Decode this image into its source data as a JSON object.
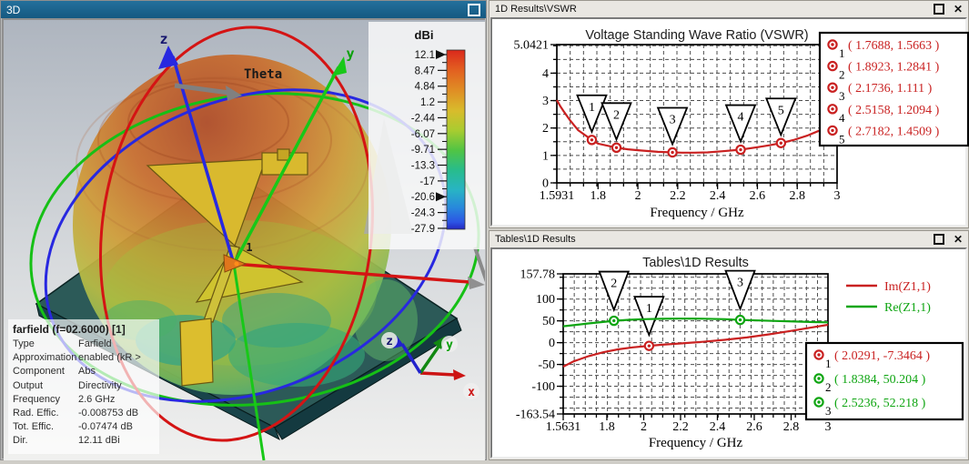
{
  "colors": {
    "red_curve": "#c92121",
    "green_curve": "#0fa512",
    "titlebar_active": "#1a6189"
  },
  "viewport3d": {
    "title": "3D",
    "axis_labels": {
      "z": "z",
      "y": "y",
      "x": "x",
      "theta": "Theta"
    },
    "port_label": "1",
    "colorbar": {
      "title": "dBi",
      "tick_labels": [
        "12.1",
        "8.47",
        "4.84",
        "1.2",
        "-2.44",
        "-6.07",
        "-9.71",
        "-13.3",
        "-17",
        "-20.6",
        "-24.3",
        "-27.9"
      ],
      "arrow_indices": [
        0,
        9
      ]
    },
    "info_box": {
      "title": "farfield (f=02.6000) [1]",
      "rows": [
        {
          "label": "Type",
          "value": "Farfield"
        },
        {
          "label": "Approximation",
          "value": "enabled (kR >"
        },
        {
          "label": "Component",
          "value": "Abs"
        },
        {
          "label": "Output",
          "value": "Directivity"
        },
        {
          "label": "Frequency",
          "value": "2.6 GHz"
        },
        {
          "label": "Rad. Effic.",
          "value": "-0.008753 dB"
        },
        {
          "label": "Tot. Effic.",
          "value": "-0.07474 dB"
        },
        {
          "label": "Dir.",
          "value": "12.11 dBi"
        }
      ]
    }
  },
  "panels": {
    "vswr": {
      "title": "1D Results\\VSWR"
    },
    "tables": {
      "title": "Tables\\1D Results"
    }
  },
  "chart_data": [
    {
      "type": "line",
      "title": "Voltage Standing Wave Ratio (VSWR)",
      "xlabel": "Frequency / GHz",
      "ylabel": "",
      "xlim": [
        1.5931,
        3
      ],
      "ylim": [
        0,
        5.0421
      ],
      "grid": true,
      "xgrid_step": 0.067,
      "ygrid_step": 0.5,
      "xticks": [
        {
          "v": 1.5931,
          "label": "1.5931"
        },
        {
          "v": 1.8,
          "label": "1.8"
        },
        {
          "v": 2,
          "label": "2"
        },
        {
          "v": 2.2,
          "label": "2.2"
        },
        {
          "v": 2.4,
          "label": "2.4"
        },
        {
          "v": 2.6,
          "label": "2.6"
        },
        {
          "v": 2.8,
          "label": "2.8"
        },
        {
          "v": 3,
          "label": "3"
        }
      ],
      "yticks": [
        {
          "v": 0,
          "label": "0"
        },
        {
          "v": 1,
          "label": "1"
        },
        {
          "v": 2,
          "label": "2"
        },
        {
          "v": 3,
          "label": "3"
        },
        {
          "v": 4,
          "label": "4"
        },
        {
          "v": 5.0421,
          "label": "5.0421"
        }
      ],
      "series": [
        {
          "name": "VSWR",
          "color": "#c92121",
          "x": [
            1.5931,
            1.61,
            1.63,
            1.66,
            1.7,
            1.7688,
            1.8,
            1.8923,
            1.95,
            2.0,
            2.05,
            2.1,
            2.1736,
            2.22,
            2.28,
            2.35,
            2.42,
            2.5158,
            2.6,
            2.66,
            2.7182,
            2.78,
            2.85,
            2.91,
            2.95
          ],
          "y": [
            3.02,
            2.8,
            2.58,
            2.28,
            1.92,
            1.5663,
            1.43,
            1.2841,
            1.225,
            1.19,
            1.16,
            1.13,
            1.111,
            1.1,
            1.1,
            1.11,
            1.15,
            1.2094,
            1.3,
            1.37,
            1.4509,
            1.56,
            1.72,
            1.9,
            2.02
          ]
        }
      ],
      "markers": [
        {
          "n": "1",
          "x": 1.7688,
          "y": 1.5663,
          "color": "#c92121"
        },
        {
          "n": "2",
          "x": 1.8923,
          "y": 1.2841,
          "color": "#c92121"
        },
        {
          "n": "3",
          "x": 2.1736,
          "y": 1.111,
          "color": "#c92121"
        },
        {
          "n": "4",
          "x": 2.5158,
          "y": 1.2094,
          "color": "#c92121"
        },
        {
          "n": "5",
          "x": 2.7182,
          "y": 1.4509,
          "color": "#c92121"
        }
      ],
      "legend_rows": [
        {
          "n": "1",
          "text": "( 1.7688, 1.5663 )",
          "color": "#c92121"
        },
        {
          "n": "2",
          "text": "( 1.8923, 1.2841 )",
          "color": "#c92121"
        },
        {
          "n": "3",
          "text": "( 2.1736, 1.111 )",
          "color": "#c92121"
        },
        {
          "n": "4",
          "text": "( 2.5158, 1.2094 )",
          "color": "#c92121"
        },
        {
          "n": "5",
          "text": "( 2.7182, 1.4509 )",
          "color": "#c92121"
        }
      ],
      "legend_position": "top-right"
    },
    {
      "type": "line",
      "title": "Tables\\1D Results",
      "xlabel": "Frequency / GHz",
      "ylabel": "",
      "xlim": [
        1.5631,
        3
      ],
      "ylim": [
        -163.54,
        157.78
      ],
      "grid": true,
      "xgrid_step": 0.06,
      "ygrid_step": 25,
      "xticks": [
        {
          "v": 1.5631,
          "label": "1.5631"
        },
        {
          "v": 1.8,
          "label": "1.8"
        },
        {
          "v": 2,
          "label": "2"
        },
        {
          "v": 2.2,
          "label": "2.2"
        },
        {
          "v": 2.4,
          "label": "2.4"
        },
        {
          "v": 2.6,
          "label": "2.6"
        },
        {
          "v": 2.8,
          "label": "2.8"
        },
        {
          "v": 3,
          "label": "3"
        }
      ],
      "yticks": [
        {
          "v": -163.54,
          "label": "-163.54"
        },
        {
          "v": -100,
          "label": "-100"
        },
        {
          "v": -50,
          "label": "-50"
        },
        {
          "v": 0,
          "label": "0"
        },
        {
          "v": 50,
          "label": "50"
        },
        {
          "v": 100,
          "label": "100"
        },
        {
          "v": 157.78,
          "label": "157.78"
        }
      ],
      "series": [
        {
          "name": "Im(Z1,1)",
          "color": "#c92121",
          "x": [
            1.5631,
            1.62,
            1.7,
            1.78,
            1.86,
            1.94,
            2.0291,
            2.1,
            2.2,
            2.32,
            2.44,
            2.56,
            2.68,
            2.8,
            2.9,
            3.0
          ],
          "y": [
            -55,
            -43,
            -31,
            -22,
            -15.5,
            -10.8,
            -7.3464,
            -4.8,
            -1.8,
            2.0,
            6.5,
            12,
            19,
            27,
            34,
            41
          ]
        },
        {
          "name": "Re(Z1,1)",
          "color": "#0fa512",
          "x": [
            1.5631,
            1.62,
            1.7,
            1.78,
            1.8384,
            1.92,
            2.0,
            2.1,
            2.2,
            2.32,
            2.44,
            2.5236,
            2.62,
            2.72,
            2.82,
            2.92,
            3.0
          ],
          "y": [
            37.5,
            40,
            44,
            47.5,
            50.204,
            52.5,
            53.8,
            54.8,
            55.2,
            55.0,
            53.8,
            52.218,
            51,
            49.8,
            48.5,
            47.3,
            46.5
          ]
        }
      ],
      "markers": [
        {
          "n": "1",
          "x": 2.0291,
          "y": -7.3464,
          "color": "#c92121"
        },
        {
          "n": "2",
          "x": 1.8384,
          "y": 50.204,
          "color": "#0fa512"
        },
        {
          "n": "3",
          "x": 2.5236,
          "y": 52.218,
          "color": "#0fa512"
        }
      ],
      "line_legend": [
        {
          "name": "Im(Z1,1)",
          "color": "#c92121"
        },
        {
          "name": "Re(Z1,1)",
          "color": "#0fa512"
        }
      ],
      "legend_rows": [
        {
          "n": "1",
          "text": "( 2.0291, -7.3464 )",
          "color": "#c92121"
        },
        {
          "n": "2",
          "text": "( 1.8384, 50.204 )",
          "color": "#0fa512"
        },
        {
          "n": "3",
          "text": "( 2.5236, 52.218 )",
          "color": "#0fa512"
        }
      ],
      "legend_position": "bottom-right"
    }
  ]
}
